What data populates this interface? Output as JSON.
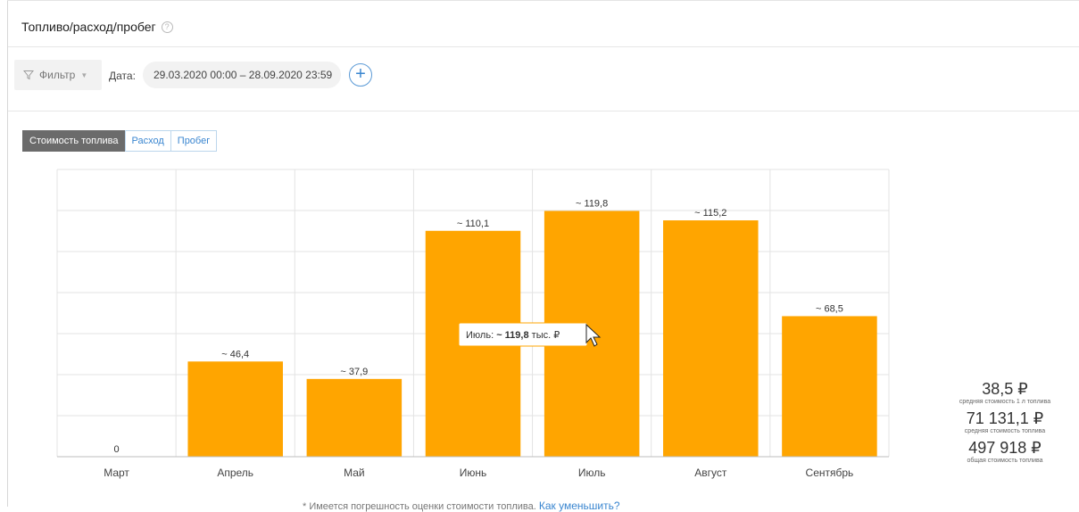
{
  "header": {
    "title": "Топливо/расход/пробег",
    "help_icon": "question-circle-icon"
  },
  "toolbar": {
    "filter_label": "Фильтр",
    "date_label": "Дата:",
    "date_value": "29.03.2020 00:00 – 28.09.2020 23:59",
    "add_icon": "plus-circle-icon"
  },
  "tabs": [
    {
      "label": "Стоимость топлива",
      "active": true
    },
    {
      "label": "Расход",
      "active": false
    },
    {
      "label": "Пробег",
      "active": false
    }
  ],
  "chart_data": {
    "type": "bar",
    "categories": [
      "Март",
      "Апрель",
      "Май",
      "Июнь",
      "Июль",
      "Август",
      "Сентябрь"
    ],
    "values": [
      0,
      46.4,
      37.9,
      110.1,
      119.8,
      115.2,
      68.5
    ],
    "data_labels": [
      "0",
      "~ 46,4",
      "~ 37,9",
      "~ 110,1",
      "~ 119,8",
      "~ 115,2",
      "~ 68,5"
    ],
    "ylim": [
      0,
      140
    ],
    "grid": true,
    "bar_color": "#ffa500",
    "tooltip": {
      "prefix": "Июль: ",
      "value": "~ 119,8",
      "suffix": " тыс. ₽"
    }
  },
  "stats": [
    {
      "value": "38,5 ₽",
      "label": "средняя стоимость 1 л топлива"
    },
    {
      "value": "71 131,1 ₽",
      "label": "средняя стоимость топлива"
    },
    {
      "value": "497 918 ₽",
      "label": "общая стоимость топлива"
    }
  ],
  "footnote": {
    "text": "* Имеется погрешность оценки стоимости топлива. ",
    "link": "Как уменьшить?"
  }
}
